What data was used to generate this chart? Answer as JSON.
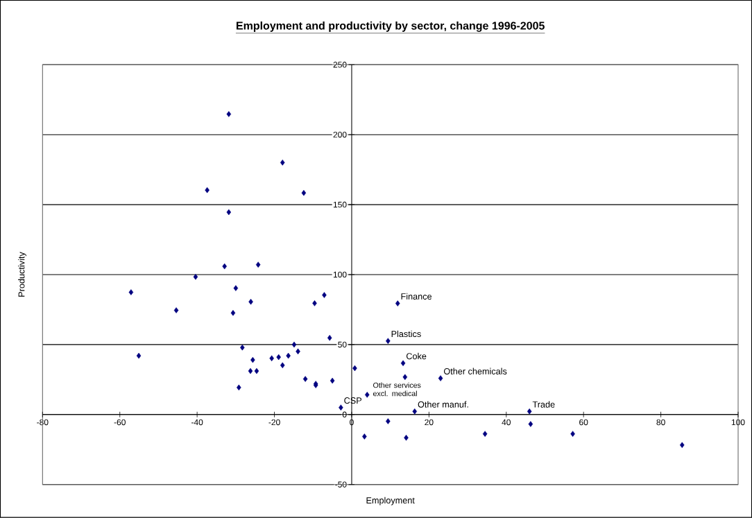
{
  "chart_data": {
    "type": "scatter",
    "title": "Employment and productivity by sector, change 1996-2005",
    "xlabel": "Employment",
    "ylabel": "Productivity",
    "x": [
      -31.8,
      -17.9,
      -37.4,
      -12.4,
      -31.8,
      -32.9,
      -24.2,
      -40.4,
      -57.1,
      -30.0,
      -45.4,
      -26.1,
      -30.7,
      -9.6,
      -7.1,
      -5.7,
      -55.1,
      -28.3,
      -25.6,
      -26.2,
      -24.6,
      -29.2,
      -20.7,
      -18.9,
      -17.9,
      -16.4,
      -14.9,
      -13.9,
      -12.0,
      -9.3,
      -9.3,
      -5.0,
      -2.8,
      0.8,
      11.9,
      9.4,
      13.3,
      13.8,
      23.0,
      4.0,
      16.3,
      46.0,
      9.4,
      46.3,
      3.3,
      14.1,
      34.5,
      57.2,
      85.5
    ],
    "values": [
      214.7,
      180.1,
      160.4,
      158.4,
      144.6,
      105.9,
      107.1,
      98.4,
      87.4,
      90.3,
      74.5,
      80.6,
      72.6,
      79.5,
      85.4,
      54.8,
      42.0,
      47.9,
      39.0,
      31.1,
      31.1,
      19.3,
      40.2,
      41.0,
      35.2,
      42.0,
      50.0,
      45.1,
      25.4,
      20.9,
      22.0,
      24.2,
      5.0,
      33.1,
      79.4,
      52.6,
      36.7,
      26.8,
      25.9,
      14.1,
      2.2,
      2.2,
      -4.8,
      -6.8,
      -15.7,
      -16.6,
      -13.8,
      -13.8,
      -21.8
    ],
    "color": "#000080",
    "marker": "diamond",
    "grid": "y",
    "xlim": [
      -80,
      100
    ],
    "xticks": [
      -80,
      -60,
      -40,
      -20,
      0,
      20,
      40,
      60,
      80,
      100
    ],
    "ylim": [
      -50,
      250
    ],
    "yticks": [
      -50,
      0,
      50,
      100,
      150,
      200,
      250
    ],
    "annotations": [
      {
        "text": "Finance",
        "x": 11.9,
        "y": 79.4
      },
      {
        "text": "Plastics",
        "x": 9.4,
        "y": 52.6
      },
      {
        "text": "Coke",
        "x": 13.3,
        "y": 36.7
      },
      {
        "text": "Other chemicals",
        "x": 23.0,
        "y": 25.9
      },
      {
        "text": "Other services excl. medical",
        "x": 4.0,
        "y": 14.1
      },
      {
        "text": "CSP",
        "x": -2.8,
        "y": 5.0
      },
      {
        "text": "Other manuf.",
        "x": 16.3,
        "y": 2.2
      },
      {
        "text": "Trade",
        "x": 46.0,
        "y": 2.2
      }
    ]
  }
}
